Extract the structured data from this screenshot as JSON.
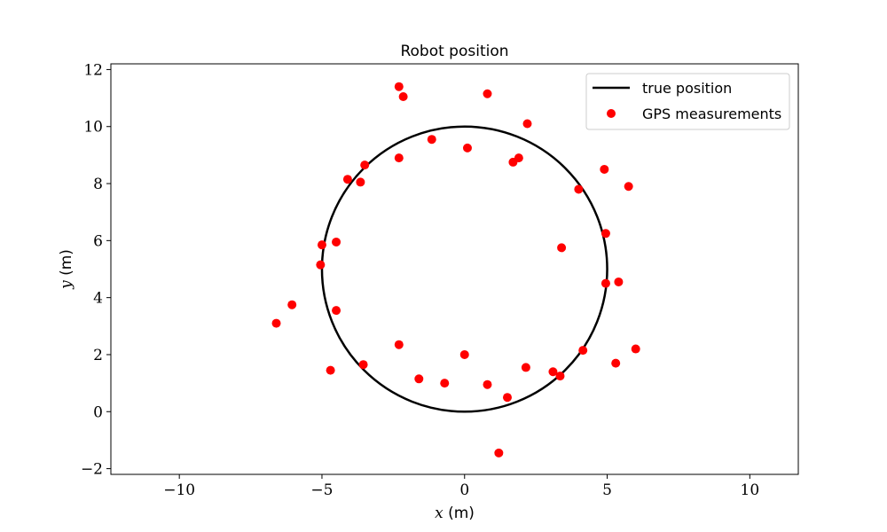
{
  "chart_data": {
    "type": "scatter",
    "title": "Robot position",
    "xlabel": {
      "var": "x",
      "unit": " (m)"
    },
    "ylabel": {
      "var": "y",
      "unit": " (m)"
    },
    "xlim": [
      -12.4,
      11.7
    ],
    "ylim": [
      -2.2,
      12.2
    ],
    "xticks": [
      -10,
      -5,
      0,
      5,
      10
    ],
    "yticks": [
      -2,
      0,
      2,
      4,
      6,
      8,
      10,
      12
    ],
    "grid": false,
    "legend_position": "top-right",
    "colors": {
      "true_position": "#000000",
      "gps": "#ff0000"
    },
    "true_position": {
      "name": "true position",
      "shape": "circle",
      "center": [
        0,
        5
      ],
      "radius": 5
    },
    "gps_measurements": {
      "name": "GPS measurements",
      "points": [
        [
          -2.3,
          11.4
        ],
        [
          -2.15,
          11.05
        ],
        [
          0.8,
          11.15
        ],
        [
          2.2,
          10.1
        ],
        [
          -1.15,
          9.55
        ],
        [
          0.1,
          9.25
        ],
        [
          -2.3,
          8.9
        ],
        [
          -3.5,
          8.65
        ],
        [
          1.7,
          8.75
        ],
        [
          1.9,
          8.9
        ],
        [
          -4.1,
          8.15
        ],
        [
          -3.65,
          8.05
        ],
        [
          4.9,
          8.5
        ],
        [
          5.75,
          7.9
        ],
        [
          4.0,
          7.8
        ],
        [
          4.95,
          6.25
        ],
        [
          3.4,
          5.75
        ],
        [
          -5.0,
          5.85
        ],
        [
          -4.5,
          5.95
        ],
        [
          -5.05,
          5.15
        ],
        [
          4.95,
          4.5
        ],
        [
          5.4,
          4.55
        ],
        [
          -6.05,
          3.75
        ],
        [
          -6.6,
          3.1
        ],
        [
          -4.5,
          3.55
        ],
        [
          -2.3,
          2.35
        ],
        [
          4.15,
          2.15
        ],
        [
          6.0,
          2.2
        ],
        [
          0.0,
          2.0
        ],
        [
          2.15,
          1.55
        ],
        [
          -3.55,
          1.65
        ],
        [
          -4.7,
          1.45
        ],
        [
          3.1,
          1.4
        ],
        [
          3.35,
          1.25
        ],
        [
          5.3,
          1.7
        ],
        [
          -1.6,
          1.15
        ],
        [
          -0.7,
          1.0
        ],
        [
          0.8,
          0.95
        ],
        [
          1.5,
          0.5
        ],
        [
          1.2,
          -1.45
        ]
      ]
    }
  }
}
